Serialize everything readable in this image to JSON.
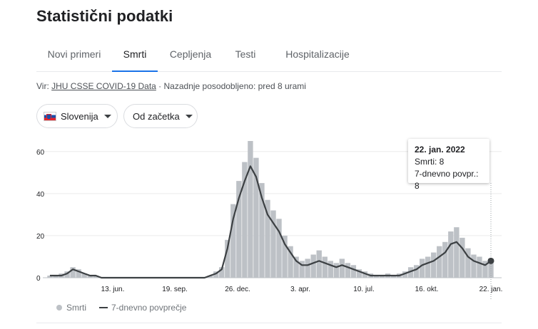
{
  "header": {
    "title": "Statistični podatki"
  },
  "tabs": [
    {
      "label": "Novi primeri",
      "active": false
    },
    {
      "label": "Smrti",
      "active": true
    },
    {
      "label": "Cepljenja",
      "active": false
    },
    {
      "label": "Testi",
      "active": false
    },
    {
      "label": "Hospitalizacije",
      "active": false
    }
  ],
  "source": {
    "prefix": "Vir: ",
    "link": "JHU CSSE COVID-19 Data",
    "suffix": " · Nazadnje posodobljeno: pred 8 urami"
  },
  "filters": {
    "region": "Slovenija",
    "range": "Od začetka"
  },
  "tooltip": {
    "date": "22. jan. 2022",
    "deaths": "Smrti: 8",
    "avg": "7-dnevno povpr.: 8"
  },
  "legend": {
    "deaths": "Smrti",
    "avg": "7-dnevno povprečje"
  },
  "colors": {
    "bars": "#bdc1c6",
    "line": "#3c4043",
    "accent": "#1a73e8"
  },
  "chart_data": {
    "type": "bar",
    "ylim": [
      0,
      65
    ],
    "yticks": [
      0,
      20,
      40,
      60
    ],
    "x_tick_labels": [
      "13. jun.",
      "19. sep.",
      "26. dec.",
      "3. apr.",
      "10. jul.",
      "16. okt.",
      "22. jan."
    ],
    "series": [
      {
        "name": "7-dnevno povprečje",
        "type": "line",
        "values": [
          1,
          1,
          1,
          2,
          4,
          3,
          2,
          1,
          1,
          0,
          0,
          0,
          0,
          0,
          0,
          0,
          0,
          0,
          0,
          0,
          0,
          0,
          0,
          0,
          0,
          0,
          0,
          0,
          1,
          2,
          4,
          14,
          28,
          38,
          46,
          53,
          48,
          38,
          30,
          26,
          22,
          16,
          12,
          8,
          6,
          6,
          7,
          8,
          7,
          6,
          5,
          6,
          5,
          4,
          3,
          2,
          1,
          1,
          1,
          1,
          1,
          1,
          2,
          3,
          4,
          6,
          7,
          8,
          10,
          12,
          16,
          17,
          14,
          10,
          8,
          7,
          6,
          8
        ]
      },
      {
        "name": "Smrti",
        "type": "bar",
        "values": [
          1,
          1,
          2,
          3,
          5,
          4,
          2,
          1,
          1,
          0,
          0,
          0,
          0,
          0,
          0,
          0,
          0,
          0,
          0,
          0,
          0,
          0,
          0,
          0,
          0,
          0,
          0,
          0,
          1,
          3,
          5,
          18,
          35,
          46,
          55,
          65,
          57,
          45,
          37,
          32,
          28,
          20,
          15,
          10,
          8,
          9,
          11,
          13,
          10,
          8,
          7,
          9,
          7,
          6,
          4,
          3,
          2,
          1,
          1,
          2,
          1,
          2,
          3,
          5,
          6,
          9,
          10,
          12,
          15,
          17,
          22,
          24,
          19,
          14,
          11,
          10,
          8,
          9
        ]
      }
    ]
  }
}
